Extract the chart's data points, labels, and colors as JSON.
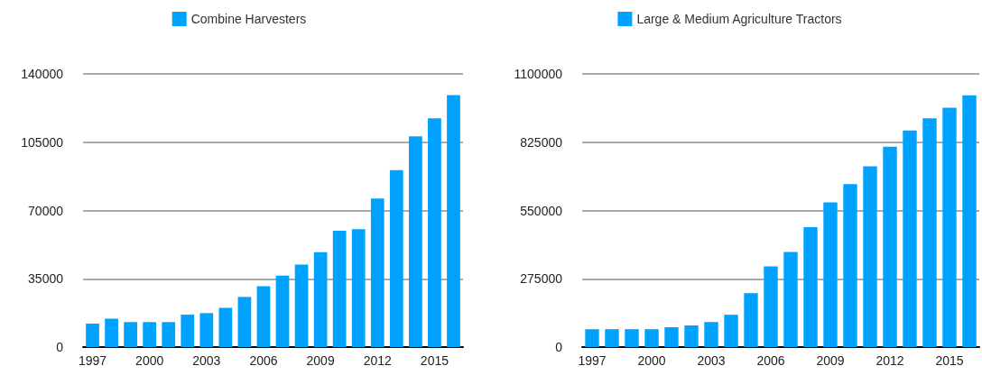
{
  "chart_data": [
    {
      "type": "bar",
      "categories": [
        "1997",
        null,
        null,
        "2000",
        null,
        null,
        "2003",
        null,
        null,
        "2006",
        null,
        null,
        "2009",
        null,
        null,
        "2012",
        null,
        null,
        "2015",
        null
      ],
      "series": [
        {
          "name": "Combine Harvesters",
          "color": "#00a2ff",
          "values": [
            12000,
            14600,
            12800,
            12800,
            12800,
            16600,
            17400,
            20100,
            25700,
            31200,
            36600,
            42300,
            48600,
            59600,
            60400,
            76100,
            90700,
            108000,
            117300,
            129100
          ]
        }
      ],
      "ylim": [
        0,
        140000
      ],
      "yticks": [
        0,
        35000,
        70000,
        105000,
        140000
      ],
      "grid": "y",
      "legend": "top"
    },
    {
      "type": "bar",
      "categories": [
        "1997",
        null,
        null,
        "2000",
        null,
        null,
        "2003",
        null,
        null,
        "2006",
        null,
        null,
        "2009",
        null,
        null,
        "2012",
        null,
        null,
        "2015",
        null
      ],
      "series": [
        {
          "name": "Large & Medium Agriculture Tractors",
          "color": "#00a2ff",
          "values": [
            72000,
            72000,
            72000,
            72000,
            80000,
            87000,
            101000,
            130000,
            217000,
            325000,
            383000,
            483000,
            583000,
            656000,
            728000,
            807000,
            872000,
            921000,
            964000,
            1014000
          ]
        }
      ],
      "ylim": [
        0,
        1100000
      ],
      "yticks": [
        0,
        275000,
        550000,
        825000,
        1100000
      ],
      "grid": "y",
      "legend": "top"
    }
  ]
}
